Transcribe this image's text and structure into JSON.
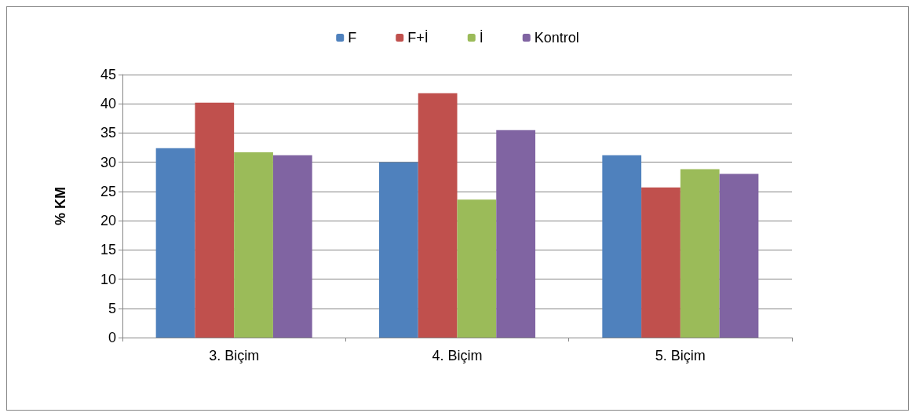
{
  "chart_data": {
    "type": "bar",
    "ylabel": "% KM",
    "categories": [
      "3. Biçim",
      "4. Biçim",
      "5. Biçim"
    ],
    "series": [
      {
        "name": "F",
        "color": "#4f81bd",
        "values": [
          32.4,
          30.0,
          31.2
        ]
      },
      {
        "name": "F+İ",
        "color": "#c0504d",
        "values": [
          40.2,
          41.8,
          25.7
        ]
      },
      {
        "name": "İ",
        "color": "#9bbb59",
        "values": [
          31.7,
          23.6,
          28.8
        ]
      },
      {
        "name": "Kontrol",
        "color": "#8064a2",
        "values": [
          31.2,
          35.5,
          28.0
        ]
      }
    ],
    "ylim": [
      0,
      45
    ],
    "yticks": [
      0,
      5,
      10,
      15,
      20,
      25,
      30,
      35,
      40,
      45
    ],
    "grid": "y",
    "legend": "top"
  }
}
